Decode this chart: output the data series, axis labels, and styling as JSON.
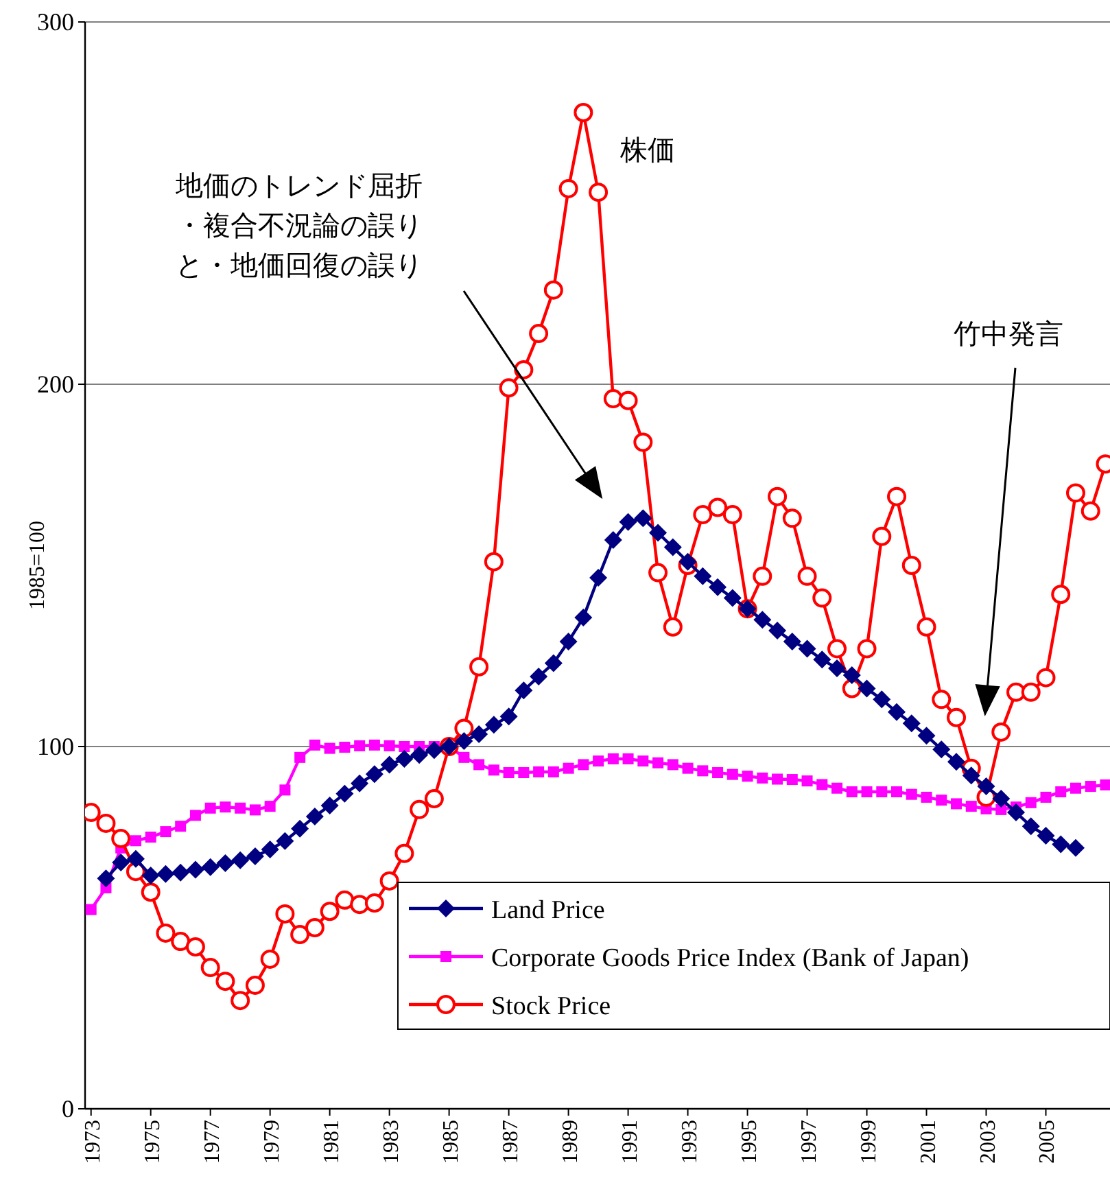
{
  "chart_data": {
    "type": "line",
    "ylabel": "1985=100",
    "xlim": [
      1972.8,
      2007.15
    ],
    "xticks": [
      1973,
      1975,
      1977,
      1979,
      1981,
      1983,
      1985,
      1987,
      1989,
      1991,
      1993,
      1995,
      1997,
      1999,
      2001,
      2003,
      2005
    ],
    "ylim": [
      0,
      300
    ],
    "yticks": [
      0,
      100,
      200,
      300
    ],
    "grid": "y",
    "legend": "bottom right",
    "line_style": "solid",
    "annotations": [
      "地価のトレンド屈折・複合不況論の誤りと・地価回復の誤り",
      "株価",
      "竹中発言"
    ],
    "series": [
      {
        "name": "Land Price",
        "color": "#000080",
        "marker": "diamond",
        "x": [
          1973.5,
          1974,
          1974.5,
          1975,
          1975.5,
          1976,
          1976.5,
          1977,
          1977.5,
          1978,
          1978.5,
          1979,
          1979.5,
          1980,
          1980.5,
          1981,
          1981.5,
          1982,
          1982.5,
          1983,
          1983.5,
          1984,
          1984.5,
          1985,
          1985.5,
          1986,
          1986.5,
          1987,
          1987.5,
          1988,
          1988.5,
          1989,
          1989.5,
          1990,
          1990.5,
          1991,
          1991.5,
          1992,
          1992.5,
          1993,
          1993.5,
          1994,
          1994.5,
          1995,
          1995.5,
          1996,
          1996.5,
          1997,
          1997.5,
          1998,
          1998.5,
          1999,
          1999.5,
          2000,
          2000.5,
          2001,
          2001.5,
          2002,
          2002.5,
          2003,
          2003.5,
          2004,
          2004.5,
          2005,
          2005.5,
          2006
        ],
        "values": [
          63.6,
          68,
          69,
          64.4,
          64.8,
          65.2,
          66,
          66.7,
          67.8,
          68.6,
          69.7,
          71.6,
          73.9,
          77.3,
          80.7,
          83.7,
          87,
          89.8,
          92.4,
          95,
          96.6,
          97.7,
          99,
          100,
          101.5,
          103.4,
          106,
          108.3,
          115.5,
          119.3,
          123,
          129,
          135.6,
          146.6,
          157,
          162,
          163,
          159,
          155,
          151,
          147,
          144,
          141,
          138,
          135,
          132,
          129,
          127,
          124,
          121.6,
          119.7,
          116,
          113,
          109.5,
          106.4,
          103,
          99.2,
          95.8,
          92,
          89,
          85.6,
          81.8,
          78,
          75.4,
          73,
          72
        ]
      },
      {
        "name": "Corporate Goods Price Index (Bank of Japan)",
        "color": "#ff00ff",
        "marker": "square",
        "x": [
          1973,
          1973.5,
          1974,
          1974.5,
          1975,
          1975.5,
          1976,
          1976.5,
          1977,
          1977.5,
          1978,
          1978.5,
          1979,
          1979.5,
          1980,
          1980.5,
          1981,
          1981.5,
          1982,
          1982.5,
          1983,
          1983.5,
          1984,
          1984.5,
          1985,
          1985.5,
          1986,
          1986.5,
          1987,
          1987.5,
          1988,
          1988.5,
          1989,
          1989.5,
          1990,
          1990.5,
          1991,
          1991.5,
          1992,
          1992.5,
          1993,
          1993.5,
          1994,
          1994.5,
          1995,
          1995.5,
          1996,
          1996.5,
          1997,
          1997.5,
          1998,
          1998.5,
          1999,
          1999.5,
          2000,
          2000.5,
          2001,
          2001.5,
          2002,
          2002.5,
          2003,
          2003.5,
          2004,
          2004.5,
          2005,
          2005.5,
          2006,
          2006.5,
          2007
        ],
        "values": [
          55,
          61,
          72,
          74,
          75,
          76.5,
          78,
          81,
          83,
          83.3,
          83,
          82.5,
          83.5,
          88,
          97,
          100.4,
          99.5,
          99.8,
          100.2,
          100.4,
          100.2,
          100,
          100,
          100,
          100,
          97,
          95,
          93.5,
          92.8,
          92.8,
          93,
          93,
          94,
          95,
          96,
          96.6,
          96.6,
          96,
          95.5,
          95,
          94,
          93.3,
          92.8,
          92.3,
          91.8,
          91.3,
          91,
          90.9,
          90.5,
          89.5,
          88.5,
          87.5,
          87.5,
          87.5,
          87.5,
          86.8,
          86,
          85.2,
          84.2,
          83.5,
          82.8,
          82.6,
          83.3,
          84.5,
          86,
          87.5,
          88.5,
          89,
          89.4
        ]
      },
      {
        "name": "Stock Price",
        "color": "#ff0000",
        "marker": "circle",
        "x": [
          1973,
          1973.5,
          1974,
          1974.5,
          1975,
          1975.5,
          1976,
          1976.5,
          1977,
          1977.5,
          1978,
          1978.5,
          1979,
          1979.5,
          1980,
          1980.5,
          1981,
          1981.5,
          1982,
          1982.5,
          1983,
          1983.5,
          1984,
          1984.5,
          1985,
          1985.5,
          1986,
          1986.5,
          1987,
          1987.5,
          1988,
          1988.5,
          1989,
          1989.5,
          1990,
          1990.5,
          1991,
          1991.5,
          1992,
          1992.5,
          1993,
          1993.5,
          1994,
          1994.5,
          1995,
          1995.5,
          1996,
          1996.5,
          1997,
          1997.5,
          1998,
          1998.5,
          1999,
          1999.5,
          2000,
          2000.5,
          2001,
          2001.5,
          2002,
          2002.5,
          2003,
          2003.5,
          2004,
          2004.5,
          2005,
          2005.5,
          2006,
          2006.5,
          2007
        ],
        "values": [
          81.8,
          78.8,
          74.6,
          65.5,
          59.8,
          48.5,
          46.2,
          44.7,
          39,
          35.2,
          29.9,
          34.1,
          41.3,
          53.8,
          48.1,
          50,
          54.5,
          57.6,
          56.4,
          56.8,
          62.9,
          70.5,
          82.6,
          85.6,
          100,
          105,
          122,
          151,
          199,
          204,
          214,
          226,
          254,
          275,
          253,
          196,
          195.5,
          184,
          148,
          133,
          150,
          164,
          166,
          164,
          138,
          147,
          169,
          163,
          147,
          141,
          127,
          116,
          127,
          158,
          169,
          150,
          133,
          113,
          108,
          94,
          86,
          104,
          115,
          115,
          119,
          142,
          170,
          165,
          178
        ]
      }
    ]
  }
}
